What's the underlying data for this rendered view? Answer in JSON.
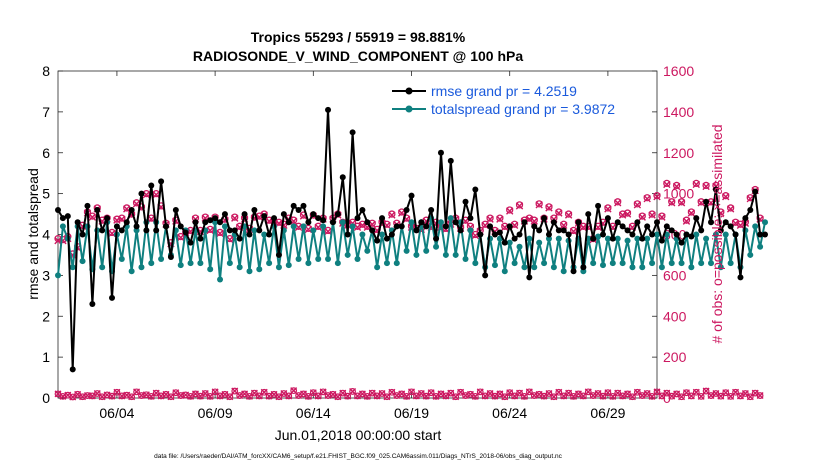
{
  "chart_data": {
    "type": "line",
    "title_line1": "Tropics 55293 / 55919 = 98.881%",
    "title_line2": "RADIOSONDE_V_WIND_COMPONENT @ 100 hPa",
    "xlabel": "Jun.01,2018 00:00:00 start",
    "ylabel_left": "rmse and totalspread",
    "ylabel_right": "# of obs: o=possible; ×=assimilated",
    "footer": "data file: /Users/raeder/DAI/ATM_forcXX/CAM6_setup/f.e21.FHIST_BGC.f09_025.CAM6assim.011/Diags_NTrS_2018-06/obs_diag_output.nc",
    "x_range_days": [
      0,
      30.5
    ],
    "ylim_left": [
      0,
      8
    ],
    "ylim_right": [
      0,
      1600
    ],
    "left_ticks": [
      "0",
      "1",
      "2",
      "3",
      "4",
      "5",
      "6",
      "7",
      "8"
    ],
    "right_ticks": [
      "0",
      "200",
      "400",
      "600",
      "800",
      "1000",
      "1200",
      "1400",
      "1600"
    ],
    "x_ticks": [
      {
        "day": 3,
        "label": "06/04"
      },
      {
        "day": 8,
        "label": "06/09"
      },
      {
        "day": 13,
        "label": "06/14"
      },
      {
        "day": 18,
        "label": "06/19"
      },
      {
        "day": 23,
        "label": "06/24"
      },
      {
        "day": 28,
        "label": "06/29"
      }
    ],
    "step_days": 0.25,
    "legend": [
      {
        "label": "rmse grand pr = 4.2519",
        "color": "#000000"
      },
      {
        "label": "totalspread grand pr = 3.9872",
        "color": "#0f8080"
      }
    ],
    "colors": {
      "rmse": "#000000",
      "spread": "#0f8080",
      "obs": "#cc1860",
      "axis": "#262626",
      "legend_text": "#1a5adc"
    },
    "series": [
      {
        "name": "rmse",
        "values": [
          4.6,
          4.4,
          4.45,
          0.7,
          4.3,
          4.0,
          4.7,
          2.3,
          4.6,
          4.1,
          4.4,
          2.45,
          4.2,
          4.1,
          4.3,
          4.6,
          4.2,
          5.0,
          4.1,
          5.2,
          4.1,
          5.3,
          4.2,
          3.45,
          4.6,
          4.2,
          4.05,
          3.8,
          4.3,
          3.9,
          4.3,
          4.35,
          4.4,
          4.3,
          4.5,
          4.1,
          4.1,
          3.9,
          4.5,
          4.0,
          4.6,
          4.1,
          4.45,
          4.0,
          4.4,
          3.5,
          4.5,
          4.3,
          4.7,
          4.6,
          4.7,
          4.3,
          4.5,
          4.4,
          4.35,
          7.05,
          4.3,
          4.5,
          5.4,
          4.0,
          6.5,
          4.4,
          4.6,
          4.3,
          4.1,
          3.85,
          4.4,
          3.9,
          4.0,
          4.2,
          4.2,
          4.6,
          4.95,
          4.1,
          4.3,
          4.2,
          4.6,
          3.9,
          6.0,
          4.2,
          5.8,
          4.3,
          4.1,
          4.8,
          4.4,
          5.1,
          4.0,
          3.0,
          4.2,
          4.0,
          4.05,
          3.8,
          4.2,
          3.9,
          4.0,
          4.3,
          2.95,
          4.2,
          4.1,
          4.4,
          4.0,
          4.3,
          4.1,
          4.1,
          4.0,
          3.1,
          4.3,
          3.2,
          4.5,
          3.9,
          4.7,
          4.0,
          4.4,
          3.9,
          4.3,
          4.2,
          4.1,
          4.0,
          4.3,
          3.9,
          4.2,
          4.0,
          4.3,
          3.85,
          4.2,
          4.1,
          4.0,
          3.8,
          4.0,
          3.95,
          4.4,
          4.1,
          4.8,
          4.3,
          5.1,
          4.1,
          4.3,
          4.2,
          4.0,
          2.95,
          4.4,
          4.6,
          5.05,
          4.0,
          4.0
        ]
      },
      {
        "name": "totalspread",
        "values": [
          3.0,
          4.2,
          3.9,
          3.2,
          4.2,
          3.35,
          4.2,
          3.15,
          4.1,
          3.2,
          4.3,
          3.1,
          4.0,
          3.4,
          4.2,
          3.1,
          4.1,
          3.2,
          4.3,
          3.3,
          4.3,
          3.4,
          4.2,
          3.5,
          4.1,
          3.25,
          4.1,
          3.3,
          4.1,
          3.3,
          4.1,
          3.15,
          4.3,
          2.9,
          4.2,
          3.3,
          4.0,
          3.2,
          4.2,
          3.1,
          4.1,
          3.15,
          4.0,
          3.3,
          4.2,
          3.2,
          4.1,
          3.25,
          4.2,
          3.4,
          4.2,
          3.3,
          4.1,
          3.4,
          4.2,
          3.4,
          4.3,
          3.3,
          4.3,
          3.5,
          4.2,
          3.4,
          4.0,
          3.6,
          4.1,
          3.2,
          4.0,
          3.3,
          4.1,
          3.3,
          4.2,
          3.6,
          4.3,
          3.5,
          4.3,
          3.6,
          4.4,
          3.7,
          4.3,
          3.5,
          4.4,
          3.5,
          4.3,
          3.4,
          4.1,
          3.3,
          4.0,
          3.2,
          3.9,
          3.25,
          3.9,
          3.1,
          3.8,
          3.3,
          3.7,
          3.2,
          3.9,
          3.2,
          3.8,
          3.3,
          3.9,
          3.2,
          3.9,
          3.1,
          3.85,
          3.2,
          3.9,
          3.1,
          3.9,
          3.3,
          3.95,
          3.25,
          3.9,
          3.3,
          3.9,
          3.3,
          3.85,
          3.2,
          3.9,
          3.2,
          3.9,
          3.3,
          4.0,
          3.2,
          4.0,
          3.3,
          3.9,
          3.3,
          4.0,
          3.2,
          4.0,
          3.3,
          3.9,
          3.3,
          4.0,
          3.2,
          4.0,
          3.3,
          4.0,
          3.2,
          4.1,
          3.5,
          4.2,
          3.7,
          4.3
        ]
      },
      {
        "name": "obs_possible",
        "values": [
          780,
          775,
          790,
          705,
          740,
          845,
          910,
          890,
          930,
          870,
          880,
          810,
          875,
          880,
          930,
          900,
          955,
          935,
          1000,
          880,
          1000,
          940,
          855,
          760,
          870,
          790,
          815,
          820,
          880,
          820,
          885,
          825,
          885,
          810,
          875,
          780,
          885,
          840,
          880,
          830,
          885,
          890,
          900,
          870,
          860,
          860,
          850,
          880,
          870,
          840,
          895,
          830,
          895,
          840,
          880,
          820,
          880,
          900,
          860,
          850,
          860,
          840,
          850,
          840,
          855,
          825,
          860,
          850,
          900,
          855,
          910,
          880,
          840,
          830,
          830,
          870,
          840,
          860,
          840,
          830,
          855,
          880,
          835,
          870,
          840,
          800,
          820,
          850,
          880,
          820,
          880,
          840,
          920,
          850,
          945,
          870,
          880,
          870,
          950,
          880,
          935,
          880,
          910,
          850,
          900,
          820,
          860,
          840,
          840,
          780,
          840,
          860,
          930,
          840,
          960,
          900,
          905,
          840,
          950,
          890,
          980,
          900,
          990,
          890,
          1050,
          960,
          1040,
          960,
          870,
          910,
          1050,
          960,
          1040,
          960,
          1040,
          910,
          990,
          930,
          860,
          850,
          860,
          980,
          1020,
          880
        ]
      },
      {
        "name": "obs_assimilated",
        "values": [
          770,
          770,
          780,
          700,
          735,
          840,
          905,
          885,
          925,
          865,
          875,
          805,
          870,
          875,
          925,
          895,
          950,
          930,
          995,
          875,
          995,
          935,
          850,
          755,
          865,
          785,
          810,
          815,
          875,
          815,
          880,
          820,
          880,
          805,
          870,
          775,
          880,
          835,
          875,
          825,
          880,
          885,
          895,
          865,
          855,
          855,
          845,
          875,
          865,
          835,
          890,
          825,
          890,
          835,
          875,
          815,
          875,
          895,
          855,
          845,
          855,
          835,
          845,
          835,
          850,
          820,
          855,
          845,
          895,
          850,
          905,
          875,
          835,
          825,
          825,
          865,
          835,
          855,
          835,
          825,
          850,
          875,
          830,
          865,
          835,
          795,
          815,
          845,
          875,
          815,
          875,
          835,
          915,
          845,
          940,
          865,
          875,
          865,
          945,
          875,
          930,
          875,
          905,
          845,
          895,
          815,
          855,
          835,
          835,
          775,
          835,
          855,
          925,
          835,
          955,
          895,
          900,
          835,
          945,
          885,
          975,
          895,
          985,
          885,
          1045,
          955,
          1035,
          955,
          865,
          905,
          1045,
          955,
          1035,
          955,
          1035,
          905,
          985,
          925,
          855,
          845,
          855,
          975,
          1015,
          875
        ]
      },
      {
        "name": "obs_low_possible",
        "values": [
          20,
          8,
          14,
          5,
          18,
          6,
          12,
          10,
          22,
          6,
          15,
          9,
          28,
          10,
          14,
          6,
          30,
          12,
          16,
          8,
          24,
          10,
          18,
          6,
          26,
          12,
          15,
          8,
          20,
          9,
          22,
          8,
          30,
          10,
          18,
          6,
          34,
          12,
          20,
          8,
          24,
          10,
          28,
          9,
          18,
          6,
          22,
          10,
          36,
          12,
          20,
          8,
          26,
          10,
          30,
          12,
          18,
          6,
          24,
          9,
          32,
          10,
          20,
          8,
          24,
          10,
          22,
          6,
          28,
          12,
          20,
          8,
          30,
          10,
          22,
          9,
          26,
          8,
          20,
          10,
          24,
          6,
          28,
          12,
          18,
          8,
          30,
          10,
          22,
          9,
          20,
          6,
          26,
          10,
          24,
          8,
          30,
          12,
          18,
          9,
          22,
          6,
          28,
          10,
          24,
          8,
          20,
          10,
          30,
          12,
          22,
          9,
          26,
          8,
          24,
          10,
          20,
          6,
          28,
          12,
          22,
          8,
          30,
          10,
          24,
          9,
          20,
          6,
          26,
          10,
          28,
          8,
          34,
          12,
          22,
          9,
          26,
          8,
          28,
          10,
          22,
          6,
          24,
          12
        ]
      }
    ]
  }
}
